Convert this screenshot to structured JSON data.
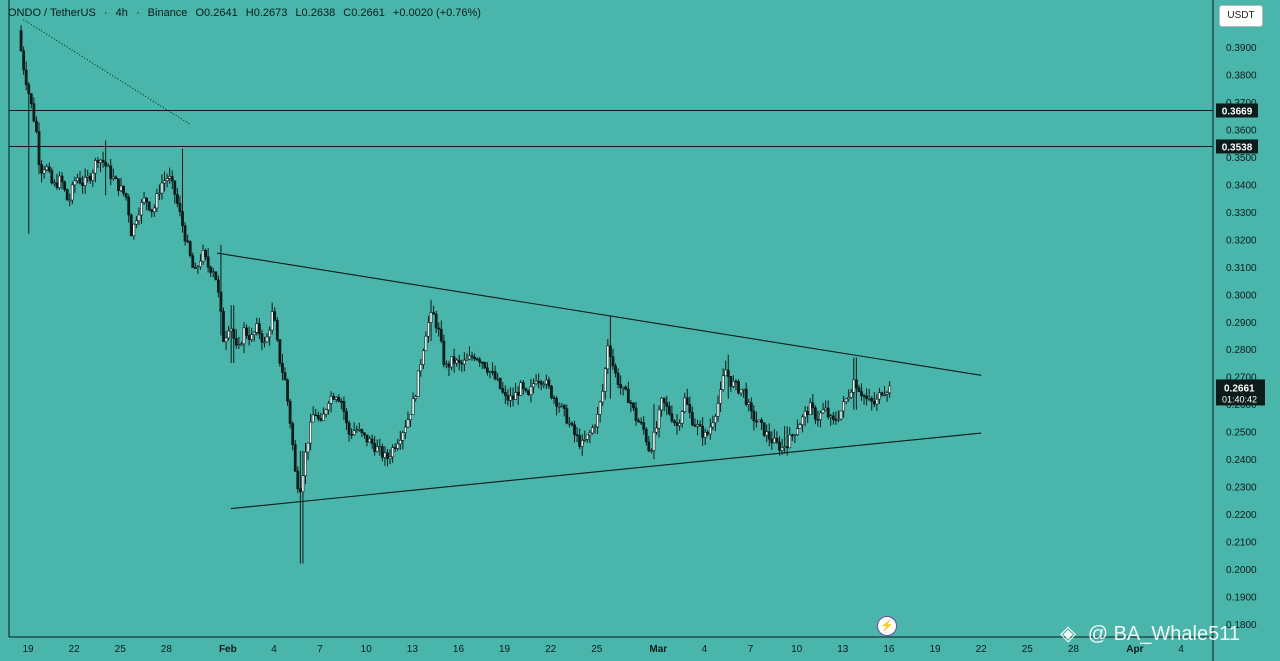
{
  "header": {
    "symbol": "ONDO / TetherUS",
    "interval": "4h",
    "exchange": "Binance",
    "open": "O0.2641",
    "high": "H0.2673",
    "low": "L0.2638",
    "close": "C0.2661",
    "change": "+0.0020 (+0.76%)",
    "sep": "·"
  },
  "unit_button": "USDT",
  "watermark": {
    "logo_icon": "binance-logo-icon",
    "text": "@ BA_Whale511"
  },
  "colors": {
    "background": "#4ab5aa",
    "ink": "#0c1c1a",
    "label_bg": "#0c1c1a",
    "label_text": "#ffffff"
  },
  "chart_data": {
    "type": "candlestick",
    "symbol": "ONDO/USDT",
    "interval": "4h",
    "ylim": [
      0.178,
      0.402
    ],
    "y_ticks": [
      "0.3900",
      "0.3800",
      "0.3700",
      "0.3600",
      "0.3500",
      "0.3400",
      "0.3300",
      "0.3200",
      "0.3100",
      "0.3000",
      "0.2900",
      "0.2800",
      "0.2700",
      "0.2600",
      "0.2500",
      "0.2400",
      "0.2300",
      "0.2200",
      "0.2100",
      "0.2000",
      "0.1900",
      "0.1800"
    ],
    "x_ticks": [
      {
        "day": 19,
        "label": "19"
      },
      {
        "day": 22,
        "label": "22"
      },
      {
        "day": 25,
        "label": "25"
      },
      {
        "day": 28,
        "label": "28"
      },
      {
        "day": 32,
        "label": "Feb"
      },
      {
        "day": 35,
        "label": "4"
      },
      {
        "day": 38,
        "label": "7"
      },
      {
        "day": 41,
        "label": "10"
      },
      {
        "day": 44,
        "label": "13"
      },
      {
        "day": 47,
        "label": "16"
      },
      {
        "day": 50,
        "label": "19"
      },
      {
        "day": 53,
        "label": "22"
      },
      {
        "day": 56,
        "label": "25"
      },
      {
        "day": 60,
        "label": "Mar"
      },
      {
        "day": 63,
        "label": "4"
      },
      {
        "day": 66,
        "label": "7"
      },
      {
        "day": 69,
        "label": "10"
      },
      {
        "day": 72,
        "label": "13"
      },
      {
        "day": 75,
        "label": "16"
      },
      {
        "day": 78,
        "label": "19"
      },
      {
        "day": 81,
        "label": "22"
      },
      {
        "day": 84,
        "label": "25"
      },
      {
        "day": 87,
        "label": "28"
      },
      {
        "day": 91,
        "label": "Apr"
      },
      {
        "day": 94,
        "label": "4"
      }
    ],
    "horizontal_lines": [
      {
        "price": 0.3669,
        "label": "0.3669"
      },
      {
        "price": 0.3538,
        "label": "0.3538"
      }
    ],
    "trendlines": [
      {
        "name": "upper",
        "from": [
          31.3,
          0.315
        ],
        "to": [
          81.0,
          0.2705
        ]
      },
      {
        "name": "lower",
        "from": [
          32.2,
          0.222
        ],
        "to": [
          81.0,
          0.2495
        ]
      },
      {
        "name": "dotted-downtrend",
        "from": [
          18.7,
          0.4
        ],
        "to": [
          29.5,
          0.362
        ],
        "dotted": true
      }
    ],
    "last_price": {
      "value": 0.2661,
      "label": "0.2661",
      "countdown": "01:40:42"
    },
    "anchors": [
      [
        18.55,
        0.396
      ],
      [
        18.8,
        0.385
      ],
      [
        19.3,
        0.371
      ],
      [
        19.7,
        0.36
      ],
      [
        19.95,
        0.345
      ],
      [
        20.3,
        0.347
      ],
      [
        20.8,
        0.339
      ],
      [
        21.3,
        0.342
      ],
      [
        21.8,
        0.333
      ],
      [
        22.3,
        0.343
      ],
      [
        22.8,
        0.34
      ],
      [
        23.3,
        0.344
      ],
      [
        23.7,
        0.35
      ],
      [
        24.1,
        0.348
      ],
      [
        24.6,
        0.343
      ],
      [
        25.1,
        0.339
      ],
      [
        25.6,
        0.335
      ],
      [
        25.9,
        0.322
      ],
      [
        26.3,
        0.33
      ],
      [
        26.8,
        0.335
      ],
      [
        27.3,
        0.33
      ],
      [
        27.8,
        0.34
      ],
      [
        28.3,
        0.343
      ],
      [
        28.7,
        0.337
      ],
      [
        29.1,
        0.328
      ],
      [
        29.6,
        0.316
      ],
      [
        30.0,
        0.307
      ],
      [
        30.5,
        0.315
      ],
      [
        30.9,
        0.31
      ],
      [
        31.3,
        0.309
      ],
      [
        31.6,
        0.298
      ],
      [
        31.9,
        0.283
      ],
      [
        32.3,
        0.29
      ],
      [
        32.8,
        0.278
      ],
      [
        33.2,
        0.287
      ],
      [
        33.7,
        0.284
      ],
      [
        34.1,
        0.288
      ],
      [
        34.6,
        0.281
      ],
      [
        35.1,
        0.294
      ],
      [
        35.5,
        0.277
      ],
      [
        35.9,
        0.268
      ],
      [
        36.3,
        0.25
      ],
      [
        36.6,
        0.232
      ],
      [
        36.9,
        0.23
      ],
      [
        37.3,
        0.245
      ],
      [
        37.8,
        0.258
      ],
      [
        38.2,
        0.252
      ],
      [
        38.7,
        0.262
      ],
      [
        39.2,
        0.264
      ],
      [
        39.6,
        0.261
      ],
      [
        40.0,
        0.249
      ],
      [
        40.5,
        0.251
      ],
      [
        41.0,
        0.248
      ],
      [
        41.5,
        0.246
      ],
      [
        42.0,
        0.243
      ],
      [
        42.5,
        0.24
      ],
      [
        43.0,
        0.245
      ],
      [
        43.5,
        0.25
      ],
      [
        43.9,
        0.255
      ],
      [
        44.3,
        0.262
      ],
      [
        44.7,
        0.275
      ],
      [
        45.1,
        0.288
      ],
      [
        45.5,
        0.293
      ],
      [
        45.9,
        0.286
      ],
      [
        46.3,
        0.273
      ],
      [
        46.8,
        0.276
      ],
      [
        47.3,
        0.274
      ],
      [
        47.8,
        0.276
      ],
      [
        48.2,
        0.278
      ],
      [
        48.7,
        0.276
      ],
      [
        49.2,
        0.272
      ],
      [
        49.7,
        0.268
      ],
      [
        50.2,
        0.262
      ],
      [
        50.7,
        0.262
      ],
      [
        51.2,
        0.266
      ],
      [
        51.7,
        0.262
      ],
      [
        52.2,
        0.27
      ],
      [
        52.7,
        0.269
      ],
      [
        53.2,
        0.264
      ],
      [
        53.7,
        0.26
      ],
      [
        54.2,
        0.255
      ],
      [
        54.7,
        0.249
      ],
      [
        55.2,
        0.245
      ],
      [
        55.7,
        0.249
      ],
      [
        56.2,
        0.255
      ],
      [
        56.6,
        0.266
      ],
      [
        56.9,
        0.283
      ],
      [
        57.3,
        0.272
      ],
      [
        57.8,
        0.265
      ],
      [
        58.3,
        0.262
      ],
      [
        58.7,
        0.255
      ],
      [
        59.2,
        0.251
      ],
      [
        59.6,
        0.243
      ],
      [
        60.0,
        0.25
      ],
      [
        60.4,
        0.261
      ],
      [
        60.9,
        0.257
      ],
      [
        61.4,
        0.252
      ],
      [
        61.9,
        0.262
      ],
      [
        62.3,
        0.255
      ],
      [
        62.8,
        0.251
      ],
      [
        63.3,
        0.248
      ],
      [
        63.8,
        0.256
      ],
      [
        64.2,
        0.263
      ],
      [
        64.5,
        0.273
      ],
      [
        64.9,
        0.268
      ],
      [
        65.3,
        0.266
      ],
      [
        65.7,
        0.265
      ],
      [
        66.2,
        0.256
      ],
      [
        66.7,
        0.253
      ],
      [
        67.2,
        0.249
      ],
      [
        67.7,
        0.246
      ],
      [
        68.2,
        0.244
      ],
      [
        68.7,
        0.247
      ],
      [
        69.2,
        0.252
      ],
      [
        69.6,
        0.255
      ],
      [
        70.0,
        0.259
      ],
      [
        70.5,
        0.255
      ],
      [
        71.0,
        0.258
      ],
      [
        71.5,
        0.253
      ],
      [
        72.0,
        0.257
      ],
      [
        72.5,
        0.263
      ],
      [
        72.9,
        0.269
      ],
      [
        73.3,
        0.265
      ],
      [
        73.8,
        0.261
      ],
      [
        74.3,
        0.26
      ],
      [
        74.7,
        0.265
      ],
      [
        75.2,
        0.266
      ]
    ]
  }
}
